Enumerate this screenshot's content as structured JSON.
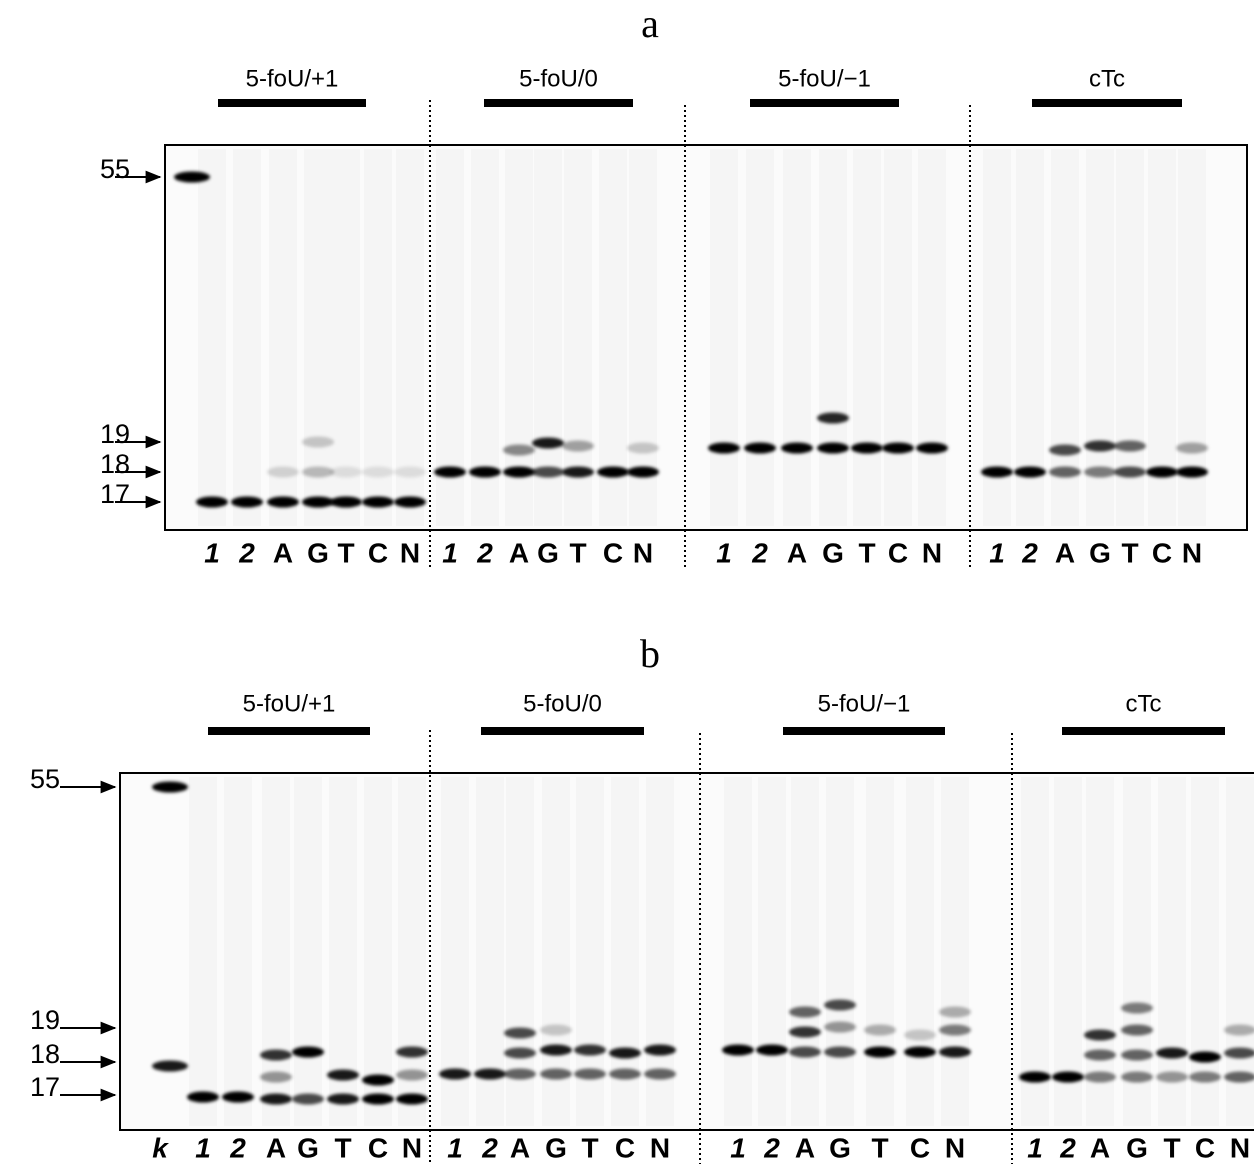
{
  "panels": [
    {
      "label": "a",
      "markers": [
        55,
        19,
        18,
        17
      ],
      "groups": [
        {
          "label": "5-foU/+1",
          "lanes": [
            "1",
            "2",
            "A",
            "G",
            "T",
            "C",
            "N"
          ]
        },
        {
          "label": "5-foU/0",
          "lanes": [
            "1",
            "2",
            "A",
            "G",
            "T",
            "C",
            "N"
          ]
        },
        {
          "label": "5-foU/−1",
          "lanes": [
            "1",
            "2",
            "A",
            "G",
            "T",
            "C",
            "N"
          ]
        },
        {
          "label": "cTc",
          "lanes": [
            "1",
            "2",
            "A",
            "G",
            "T",
            "C",
            "N"
          ]
        }
      ]
    },
    {
      "label": "b",
      "markers": [
        55,
        19,
        18,
        17
      ],
      "ladder_lane": "k",
      "groups": [
        {
          "label": "5-foU/+1",
          "lanes": [
            "1",
            "2",
            "A",
            "G",
            "T",
            "C",
            "N"
          ]
        },
        {
          "label": "5-foU/0",
          "lanes": [
            "1",
            "2",
            "A",
            "G",
            "T",
            "C",
            "N"
          ]
        },
        {
          "label": "5-foU/−1",
          "lanes": [
            "1",
            "2",
            "A",
            "G",
            "T",
            "C",
            "N"
          ]
        },
        {
          "label": "cTc",
          "lanes": [
            "1",
            "2",
            "A",
            "G",
            "T",
            "C",
            "N"
          ]
        }
      ]
    }
  ]
}
